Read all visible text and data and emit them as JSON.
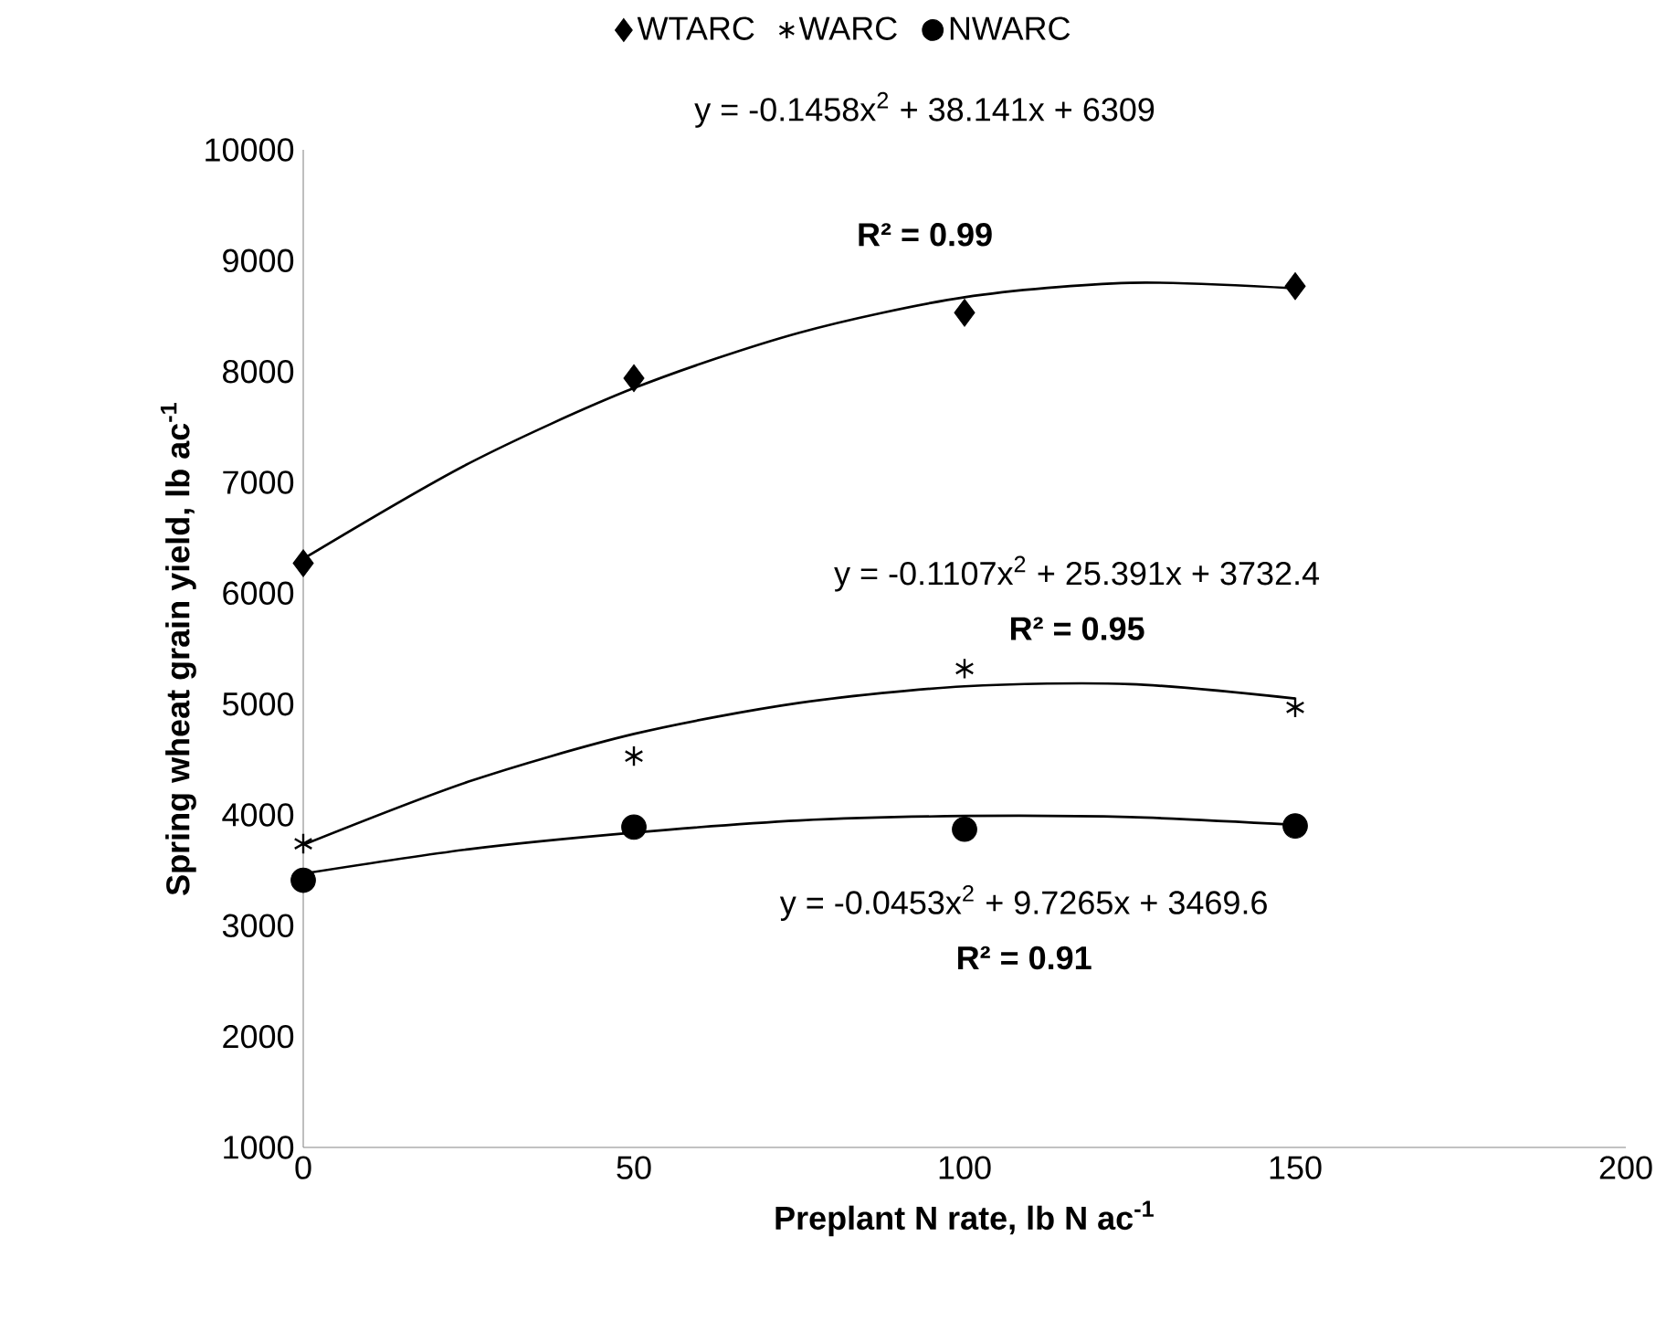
{
  "chart_data": {
    "type": "scatter",
    "xlabel": "Preplant N rate, lb N ac$^{-1}$",
    "ylabel": "Spring wheat grain yield, lb ac$^{-1}$",
    "xlim": [
      0,
      200
    ],
    "xticks": [
      0,
      50,
      100,
      150,
      200
    ],
    "ylim": [
      1000,
      10000
    ],
    "yticks": [
      1000,
      2000,
      3000,
      4000,
      5000,
      6000,
      7000,
      8000,
      9000,
      10000
    ],
    "grid": false,
    "legend": "top",
    "series": [
      {
        "name": "WTARC",
        "marker": "diamond",
        "color": "#000000",
        "x": [
          0,
          50,
          100,
          150
        ],
        "values": [
          6270,
          7940,
          8530,
          8770
        ]
      },
      {
        "name": "WARC",
        "marker": "cross",
        "color": "#000000",
        "x": [
          0,
          50,
          100,
          150
        ],
        "values": [
          3740,
          4530,
          5320,
          4970
        ]
      },
      {
        "name": "NWARC",
        "marker": "circle",
        "color": "#000000",
        "x": [
          0,
          50,
          100,
          150
        ],
        "values": [
          3410,
          3890,
          3870,
          3900
        ]
      },
      {
        "type": "line",
        "marker": "none",
        "color": "#000000",
        "x": [
          0,
          25,
          50,
          75,
          100,
          125,
          150
        ],
        "values": [
          6310,
          7170,
          7850,
          8350,
          8670,
          8800,
          8750
        ]
      },
      {
        "type": "line",
        "marker": "none",
        "color": "#000000",
        "x": [
          0,
          25,
          50,
          75,
          100,
          125,
          150
        ],
        "values": [
          3730,
          4300,
          4730,
          5010,
          5160,
          5180,
          5050
        ]
      },
      {
        "type": "line",
        "marker": "none",
        "color": "#000000",
        "x": [
          0,
          25,
          50,
          75,
          100,
          125,
          150
        ],
        "values": [
          3470,
          3690,
          3840,
          3950,
          3990,
          3980,
          3910
        ]
      }
    ],
    "annotations": [
      "y = -0.1458x$^{2}$ + 38.141x + 6309",
      "**R² = 0.99**",
      "y = -0.1107x$^{2}$ + 25.391x + 3732.4",
      "**R² = 0.95**",
      "y = -0.0453x$^{2}$ + 9.7265x + 3469.6",
      "**R² = 0.91**"
    ]
  }
}
